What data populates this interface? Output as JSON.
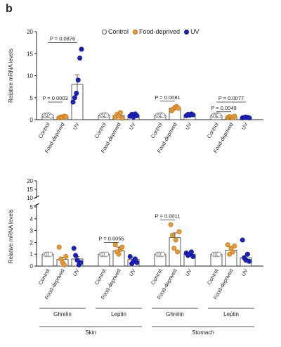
{
  "panel_letter": "b",
  "legend": [
    {
      "label": "Control",
      "color": "#ffffff",
      "stroke": "#555555"
    },
    {
      "label": "Food-deprived",
      "color": "#e39a3c",
      "stroke": "#b86f10"
    },
    {
      "label": "UV",
      "color": "#1c22b8",
      "stroke": "#0d1280"
    }
  ],
  "colors": {
    "control": "#ffffff",
    "food": "#e39a3c",
    "uv": "#1c22b8",
    "axis": "#222222"
  },
  "group_labels": [
    "Control",
    "Food-deprived",
    "UV"
  ],
  "chart_data": [
    {
      "type": "bar",
      "ylabel": "Relative mRNA levels",
      "ylim": [
        0,
        20
      ],
      "yticks": [
        0,
        5,
        10,
        15,
        20
      ],
      "groups": [
        {
          "values": [
            1.0,
            0.6,
            8.0
          ],
          "errors": [
            0.3,
            0.2,
            2.2
          ],
          "points": [
            [
              1.0,
              0.9,
              1.1,
              1.0,
              0.8
            ],
            [
              0.4,
              0.6,
              0.5,
              0.8,
              0.7
            ],
            [
              4.0,
              5.0,
              6.0,
              9.0,
              14.0,
              16.0
            ]
          ]
        },
        {
          "values": [
            1.0,
            0.9,
            1.0
          ],
          "errors": [
            0.2,
            0.3,
            0.2
          ],
          "points": [
            [
              1.0,
              0.9,
              1.1,
              1.0
            ],
            [
              0.5,
              1.2,
              0.8,
              1.6,
              0.3
            ],
            [
              0.8,
              1.2,
              0.6,
              1.3,
              0.9
            ]
          ]
        },
        {
          "values": [
            1.0,
            2.6,
            1.1
          ],
          "errors": [
            0.3,
            0.4,
            0.2
          ],
          "points": [
            [
              1.0,
              0.9,
              1.1,
              1.0
            ],
            [
              2.0,
              2.4,
              2.8,
              3.0,
              2.6
            ],
            [
              0.9,
              1.2,
              1.0,
              1.3,
              1.1
            ]
          ]
        },
        {
          "values": [
            1.0,
            0.6,
            0.5
          ],
          "errors": [
            0.2,
            0.2,
            0.1
          ],
          "points": [
            [
              1.0,
              0.9,
              1.1,
              1.0
            ],
            [
              0.5,
              0.7,
              0.6,
              0.4,
              0.8
            ],
            [
              0.4,
              0.5,
              0.6,
              0.5,
              0.4
            ]
          ]
        }
      ],
      "annotations": [
        {
          "text": "P = 0.0876",
          "group": 0,
          "from": 0,
          "to": 2,
          "y": 17.5
        },
        {
          "text": "P = 0.0003",
          "group": 0,
          "from": 0,
          "to": 1,
          "y": 4.0
        },
        {
          "text": "P = 0.0081",
          "group": 2,
          "from": 0,
          "to": 1,
          "y": 4.2
        },
        {
          "text": "P = 0.0077",
          "group": 3,
          "from": 0,
          "to": 2,
          "y": 4.0
        },
        {
          "text": "P = 0.0049",
          "group": 3,
          "from": 0,
          "to": 1,
          "y": 1.8
        }
      ]
    },
    {
      "type": "bar",
      "ylabel": "Relative mRNA levels",
      "ylim": [
        0,
        20
      ],
      "yticks": [
        0,
        1,
        2,
        3,
        4,
        5,
        10,
        15,
        20
      ],
      "groups": [
        {
          "values": [
            1.0,
            0.55,
            0.6
          ],
          "errors": [
            0.1,
            0.2,
            0.2
          ],
          "points": [
            [
              1.0,
              1.0,
              1.0,
              1.0
            ],
            [
              1.6,
              0.6,
              0.3,
              0.1,
              0.8
            ],
            [
              1.5,
              0.9,
              0.5,
              0.1,
              0.3
            ]
          ]
        },
        {
          "values": [
            1.0,
            1.3,
            0.55
          ],
          "errors": [
            0.1,
            0.3,
            0.15
          ],
          "points": [
            [
              1.0,
              1.0,
              1.0,
              1.0
            ],
            [
              1.8,
              1.2,
              1.0,
              1.4,
              1.6
            ],
            [
              0.8,
              0.2,
              0.4,
              0.6,
              0.3
            ]
          ]
        },
        {
          "values": [
            1.0,
            2.4,
            1.0
          ],
          "errors": [
            0.1,
            0.4,
            0.1
          ],
          "points": [
            [
              1.0,
              1.0,
              1.0,
              1.0
            ],
            [
              3.5,
              2.6,
              1.5,
              2.2,
              1.2,
              2.9
            ],
            [
              1.1,
              0.9,
              1.0,
              1.2,
              0.8
            ]
          ]
        },
        {
          "values": [
            1.0,
            1.35,
            0.7
          ],
          "errors": [
            0.1,
            0.3,
            0.2
          ],
          "points": [
            [
              1.0,
              1.0,
              1.0,
              1.0
            ],
            [
              1.8,
              1.0,
              1.5,
              1.2,
              1.7
            ],
            [
              2.2,
              0.7,
              0.5,
              1.0,
              0.4
            ]
          ]
        }
      ],
      "annotations": [
        {
          "text": "P = 0.0055",
          "group": 1,
          "from": 0,
          "to": 1,
          "y": 2.0
        },
        {
          "text": "P = 0.0011",
          "group": 2,
          "from": 0,
          "to": 1,
          "y": 3.9
        }
      ],
      "group_labels": [
        "Ghrelin",
        "Leptin",
        "Ghrelin",
        "Leptin"
      ],
      "tissue_labels": [
        "Skin",
        "Stomach"
      ]
    }
  ]
}
